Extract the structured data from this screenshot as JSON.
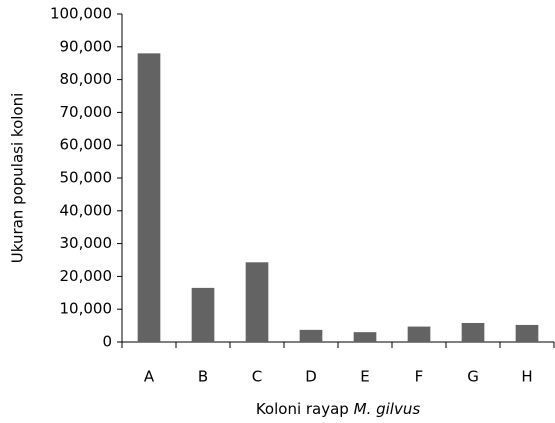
{
  "chart_data": {
    "type": "bar",
    "ylabel": "Ukuran populasi koloni",
    "xlabel": "Koloni rayap",
    "xlabel_italic": "M. gilvus",
    "categories": [
      "A",
      "B",
      "C",
      "D",
      "E",
      "F",
      "G",
      "H"
    ],
    "values": [
      88000,
      16500,
      24300,
      3700,
      3000,
      4700,
      5800,
      5200
    ],
    "color": "#636363",
    "ylim": [
      0,
      100000
    ],
    "yticks": [
      0,
      {
        "value": 10000,
        "label": "10,000"
      },
      {
        "value": 20000,
        "label": "20,000"
      },
      {
        "value": 30000,
        "label": "30,000"
      },
      {
        "value": 40000,
        "label": "40,000"
      },
      {
        "value": 50000,
        "label": "50,000"
      },
      {
        "value": 60000,
        "label": "60,000"
      },
      {
        "value": 70000,
        "label": "70,000"
      },
      {
        "value": 80000,
        "label": "80,000"
      },
      {
        "value": 90000,
        "label": "90,000"
      },
      {
        "value": 100000,
        "label": "100,000"
      }
    ],
    "grid": false
  }
}
